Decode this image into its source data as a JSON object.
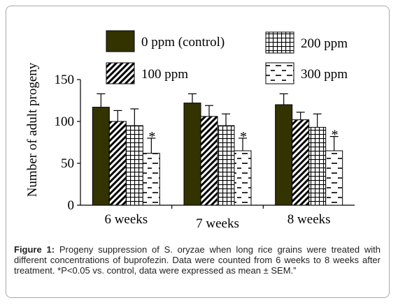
{
  "chart_data": {
    "type": "bar",
    "ylabel": "Number of adult progeny",
    "ylim": [
      0,
      150
    ],
    "yticks": [
      "0",
      "50",
      "100",
      "150"
    ],
    "categories": [
      "6 weeks",
      "7 weeks",
      "8 weeks"
    ],
    "series": [
      {
        "name": "0 ppm (control)",
        "pattern": "solid",
        "color": "#333300",
        "values": [
          117,
          122,
          120
        ],
        "errors": [
          16,
          11,
          13
        ]
      },
      {
        "name": "100 ppm",
        "pattern": "diagonal",
        "color": "#000000",
        "values": [
          100,
          106,
          102
        ],
        "errors": [
          13,
          13,
          9
        ]
      },
      {
        "name": "200 ppm",
        "pattern": "grid",
        "color": "#000000",
        "values": [
          95,
          95,
          93
        ],
        "errors": [
          20,
          14,
          16
        ]
      },
      {
        "name": "300 ppm",
        "pattern": "dashes",
        "color": "#000000",
        "values": [
          62,
          65,
          65
        ],
        "errors": [
          18,
          15,
          17
        ]
      }
    ],
    "annotations": [
      {
        "category": "6 weeks",
        "series": "300 ppm",
        "text": "*"
      },
      {
        "category": "7 weeks",
        "series": "300 ppm",
        "text": "*"
      },
      {
        "category": "8 weeks",
        "series": "300 ppm",
        "text": "*"
      }
    ]
  },
  "caption": {
    "label": "Figure 1:",
    "text": "Progeny suppression of S. oryzae when long rice grains were treated with different concentrations of buprofezin. Data were counted from 6 weeks to 8 weeks after treatment. *P<0.05 vs. control, data were expressed as mean ± SEM.”"
  }
}
